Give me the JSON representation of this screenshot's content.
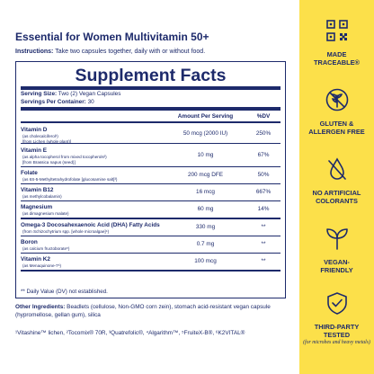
{
  "title": "Essential for Women Multivitamin 50+",
  "instructions": {
    "label": "Instructions:",
    "text": " Take two capsules together, daily with or without food."
  },
  "facts": {
    "title": "Supplement Facts",
    "serving_size_label": "Serving Size:",
    "serving_size_value": " Two (2) Vegan Capsules",
    "servings_label": "Servings Per Container:",
    "servings_value": " 30",
    "col_amount": "Amount Per Serving",
    "col_dv": "%DV",
    "rows": [
      {
        "name": "Vitamin D",
        "sub1": "(as cholecalciferol¹)",
        "sub2": "[from Lichen (whole plant)]",
        "amount": "50 mcg (2000 IU)",
        "dv": "250%"
      },
      {
        "name": "Vitamin E",
        "sub1": "(as alpha tocopherol from mixed tocopherols²)",
        "sub2": "[from Brassica napus (seed)]",
        "amount": "10 mg",
        "dv": "67%"
      },
      {
        "name": "Folate",
        "sub1": "(as 6S-5-Methyltetrahydrofolate [glucosamine salt]³)",
        "sub2": "",
        "amount": "200 mcg DFE",
        "dv": "50%"
      },
      {
        "name": "Vitamin B12",
        "sub1": "(as methylcobalamin)",
        "sub2": "",
        "amount": "16 mcg",
        "dv": "667%"
      },
      {
        "name": "Magnesium",
        "sub1": "(as dimagnesium malate)",
        "sub2": "",
        "amount": "60 mg",
        "dv": "14%"
      },
      {
        "name": "Omega-3 Docosahexaenoic Acid (DHA) Fatty Acids",
        "sub1": "(from Schizochytrium spp. [whole microalgae]⁴)",
        "sub2": "",
        "amount": "330 mg",
        "dv": "**"
      },
      {
        "name": "Boron",
        "sub1": "(as calcium fructoborate⁵)",
        "sub2": "",
        "amount": "0.7 mg",
        "dv": "**"
      },
      {
        "name": "Vitamin K2",
        "sub1": "(as Menaquinone-7⁶)",
        "sub2": "",
        "amount": "100 mcg",
        "dv": "**"
      }
    ],
    "footnote": "** Daily Value (DV) not established."
  },
  "other_ingredients": {
    "label": "Other Ingredients:",
    "text": " Beadlets (cellulose, Non-GMO corn zein), stomach acid-resistant vegan capsule (hypromellose, gellan gum), silica"
  },
  "trademarks": "¹Vitashine™ lichen, ²Tocomix® 70R, ³Quatrefolic®, ⁴Algarithm™, ⁵FruiteX-B®, ⁶K2VITAL®",
  "badges": [
    {
      "icon": "qr-code-icon",
      "line1": "MADE",
      "line2": "TRACEABLE®",
      "sub": ""
    },
    {
      "icon": "wheat-free-icon",
      "line1": "GLUTEN &",
      "line2": "ALLERGEN FREE",
      "sub": ""
    },
    {
      "icon": "droplet-free-icon",
      "line1": "NO ARTIFICIAL",
      "line2": "COLORANTS",
      "sub": ""
    },
    {
      "icon": "sprout-icon",
      "line1": "VEGAN-",
      "line2": "FRIENDLY",
      "sub": ""
    },
    {
      "icon": "shield-check-icon",
      "line1": "THIRD-PARTY",
      "line2": "TESTED",
      "sub": "(for microbes and heavy metals)"
    }
  ],
  "colors": {
    "navy": "#1d2a6b",
    "yellow": "#fce04a"
  }
}
